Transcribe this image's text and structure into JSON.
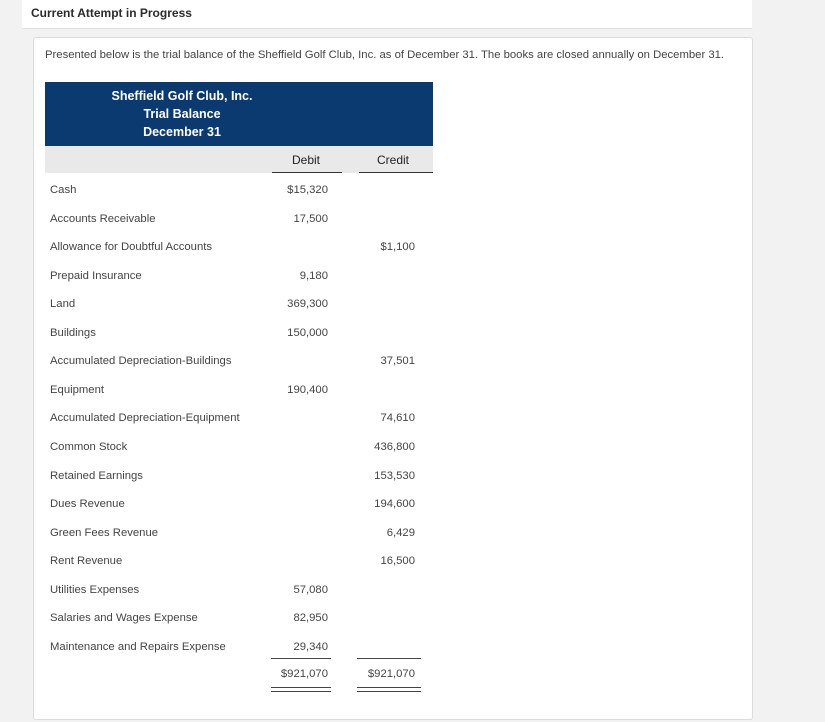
{
  "status_title": "Current Attempt in Progress",
  "intro_text": "Presented below is the trial balance of the Sheffield Golf Club, Inc. as of December 31. The books are closed annually on December 31.",
  "trial_balance": {
    "company": "Sheffield Golf Club, Inc.",
    "statement": "Trial Balance",
    "date": "December 31",
    "debit_header": "Debit",
    "credit_header": "Credit",
    "rows": [
      {
        "account": "Cash",
        "debit": "$15,320",
        "credit": ""
      },
      {
        "account": "Accounts Receivable",
        "debit": "17,500",
        "credit": ""
      },
      {
        "account": "Allowance for Doubtful Accounts",
        "debit": "",
        "credit": "$1,100"
      },
      {
        "account": "Prepaid Insurance",
        "debit": "9,180",
        "credit": ""
      },
      {
        "account": "Land",
        "debit": "369,300",
        "credit": ""
      },
      {
        "account": "Buildings",
        "debit": "150,000",
        "credit": ""
      },
      {
        "account": "Accumulated Depreciation-Buildings",
        "debit": "",
        "credit": "37,501"
      },
      {
        "account": "Equipment",
        "debit": "190,400",
        "credit": ""
      },
      {
        "account": "Accumulated Depreciation-Equipment",
        "debit": "",
        "credit": "74,610"
      },
      {
        "account": "Common Stock",
        "debit": "",
        "credit": "436,800"
      },
      {
        "account": "Retained Earnings",
        "debit": "",
        "credit": "153,530"
      },
      {
        "account": "Dues Revenue",
        "debit": "",
        "credit": "194,600"
      },
      {
        "account": "Green Fees Revenue",
        "debit": "",
        "credit": "6,429"
      },
      {
        "account": "Rent Revenue",
        "debit": "",
        "credit": "16,500"
      },
      {
        "account": "Utilities Expenses",
        "debit": "57,080",
        "credit": ""
      },
      {
        "account": "Salaries and Wages Expense",
        "debit": "82,950",
        "credit": ""
      },
      {
        "account": "Maintenance and Repairs Expense",
        "debit": "29,340",
        "credit": ""
      }
    ],
    "total_debit": "$921,070",
    "total_credit": "$921,070"
  }
}
